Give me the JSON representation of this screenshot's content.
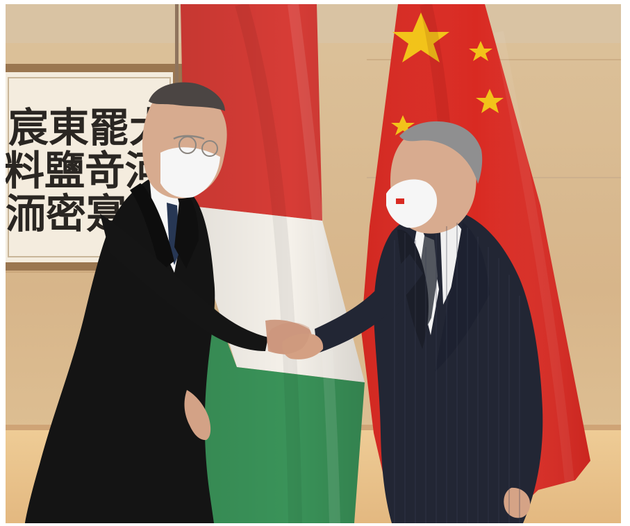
{
  "scene": {
    "calligraphy_rows": [
      "宸東罷大",
      "料鹽竒河",
      "洏密寔"
    ]
  },
  "palette": {
    "wall": "#ddc39b",
    "wall_panel": "#d2b184",
    "floor": "#e9c48d",
    "scroll": "#f3ebdd",
    "scroll_frame": "#9a7650",
    "hungary_red": "#d53b36",
    "hungary_white": "#f5f1ea",
    "hungary_green": "#3d935b",
    "china_red": "#d92a22",
    "china_yellow": "#f2c31a",
    "suit_dark": "#161616",
    "suit_navy": "#232735",
    "shirt": "#f7f7f7",
    "skin": "#d7ab8f",
    "mask": "#f6f6f6"
  },
  "icons": {
    "flag_hungary": "flag-hungary-icon",
    "flag_china": "flag-china-icon",
    "mask": "mask-icon",
    "star": "star-icon"
  }
}
